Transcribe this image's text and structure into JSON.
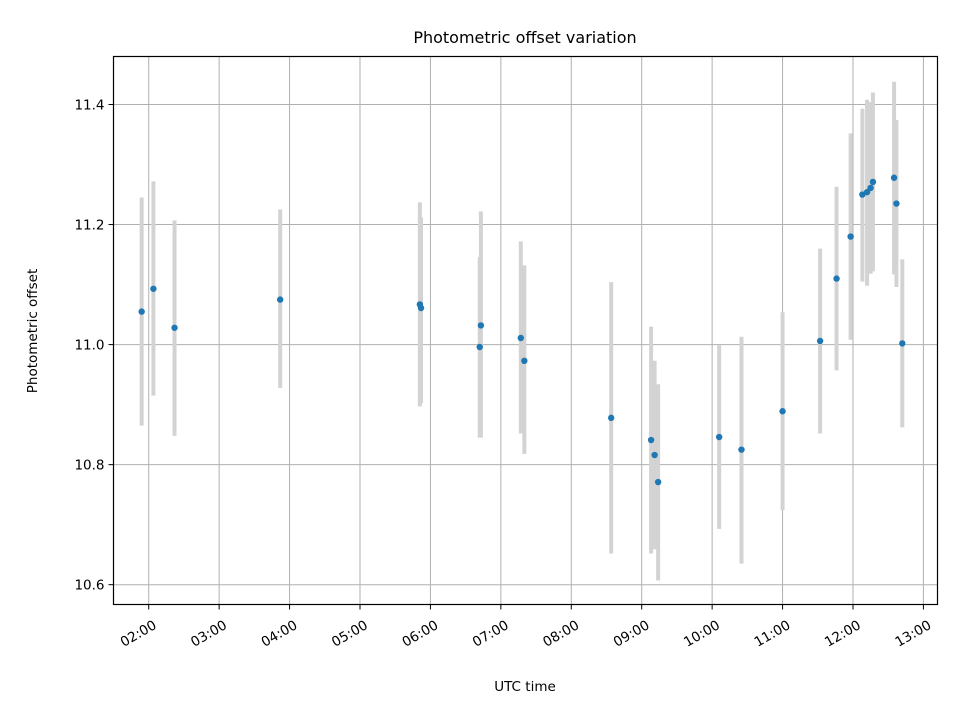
{
  "chart_data": {
    "type": "scatter",
    "title": "Photometric offset variation",
    "xlabel": "UTC time",
    "ylabel": "Photometric offset",
    "grid": true,
    "x_axis": {
      "ticks": [
        "02:00",
        "03:00",
        "04:00",
        "05:00",
        "06:00",
        "07:00",
        "08:00",
        "09:00",
        "10:00",
        "11:00",
        "12:00",
        "13:00"
      ],
      "range": [
        "01:30",
        "13:12"
      ]
    },
    "y_axis": {
      "ticks": [
        10.6,
        10.8,
        11.0,
        11.2,
        11.4
      ],
      "ylim": [
        10.567,
        11.48
      ]
    },
    "colors": {
      "points": "#1f77b4",
      "error_bars": "#d3d3d3",
      "grid": "#b0b0b0"
    },
    "series": [
      {
        "points": [
          {
            "x": "01:54",
            "y": 11.055,
            "low": 10.865,
            "high": 11.245
          },
          {
            "x": "02:04",
            "y": 11.093,
            "low": 10.915,
            "high": 11.272
          },
          {
            "x": "02:22",
            "y": 11.028,
            "low": 10.848,
            "high": 11.207
          },
          {
            "x": "03:52",
            "y": 11.075,
            "low": 10.928,
            "high": 11.225
          },
          {
            "x": "05:51",
            "y": 11.067,
            "low": 10.897,
            "high": 11.237
          },
          {
            "x": "05:52",
            "y": 11.061,
            "low": 10.903,
            "high": 11.212
          },
          {
            "x": "06:42",
            "y": 10.996,
            "low": 10.845,
            "high": 11.146
          },
          {
            "x": "06:43",
            "y": 11.032,
            "low": 10.845,
            "high": 11.222
          },
          {
            "x": "07:17",
            "y": 11.011,
            "low": 10.852,
            "high": 11.172
          },
          {
            "x": "07:20",
            "y": 10.973,
            "low": 10.818,
            "high": 11.132
          },
          {
            "x": "08:34",
            "y": 10.878,
            "low": 10.652,
            "high": 11.104
          },
          {
            "x": "09:08",
            "y": 10.841,
            "low": 10.652,
            "high": 11.03
          },
          {
            "x": "09:11",
            "y": 10.816,
            "low": 10.659,
            "high": 10.973
          },
          {
            "x": "09:14",
            "y": 10.771,
            "low": 10.607,
            "high": 10.934
          },
          {
            "x": "10:06",
            "y": 10.846,
            "low": 10.693,
            "high": 10.999
          },
          {
            "x": "10:25",
            "y": 10.825,
            "low": 10.635,
            "high": 11.013
          },
          {
            "x": "11:00",
            "y": 10.889,
            "low": 10.724,
            "high": 11.054
          },
          {
            "x": "11:32",
            "y": 11.006,
            "low": 10.852,
            "high": 11.16
          },
          {
            "x": "11:46",
            "y": 11.11,
            "low": 10.957,
            "high": 11.263
          },
          {
            "x": "11:58",
            "y": 11.18,
            "low": 11.008,
            "high": 11.352
          },
          {
            "x": "12:08",
            "y": 11.25,
            "low": 11.105,
            "high": 11.393
          },
          {
            "x": "12:12",
            "y": 11.254,
            "low": 11.098,
            "high": 11.408
          },
          {
            "x": "12:15",
            "y": 11.261,
            "low": 11.118,
            "high": 11.404
          },
          {
            "x": "12:17",
            "y": 11.271,
            "low": 11.122,
            "high": 11.42
          },
          {
            "x": "12:35",
            "y": 11.278,
            "low": 11.117,
            "high": 11.438
          },
          {
            "x": "12:37",
            "y": 11.235,
            "low": 11.096,
            "high": 11.374
          },
          {
            "x": "12:42",
            "y": 11.002,
            "low": 10.862,
            "high": 11.142
          }
        ]
      }
    ]
  }
}
